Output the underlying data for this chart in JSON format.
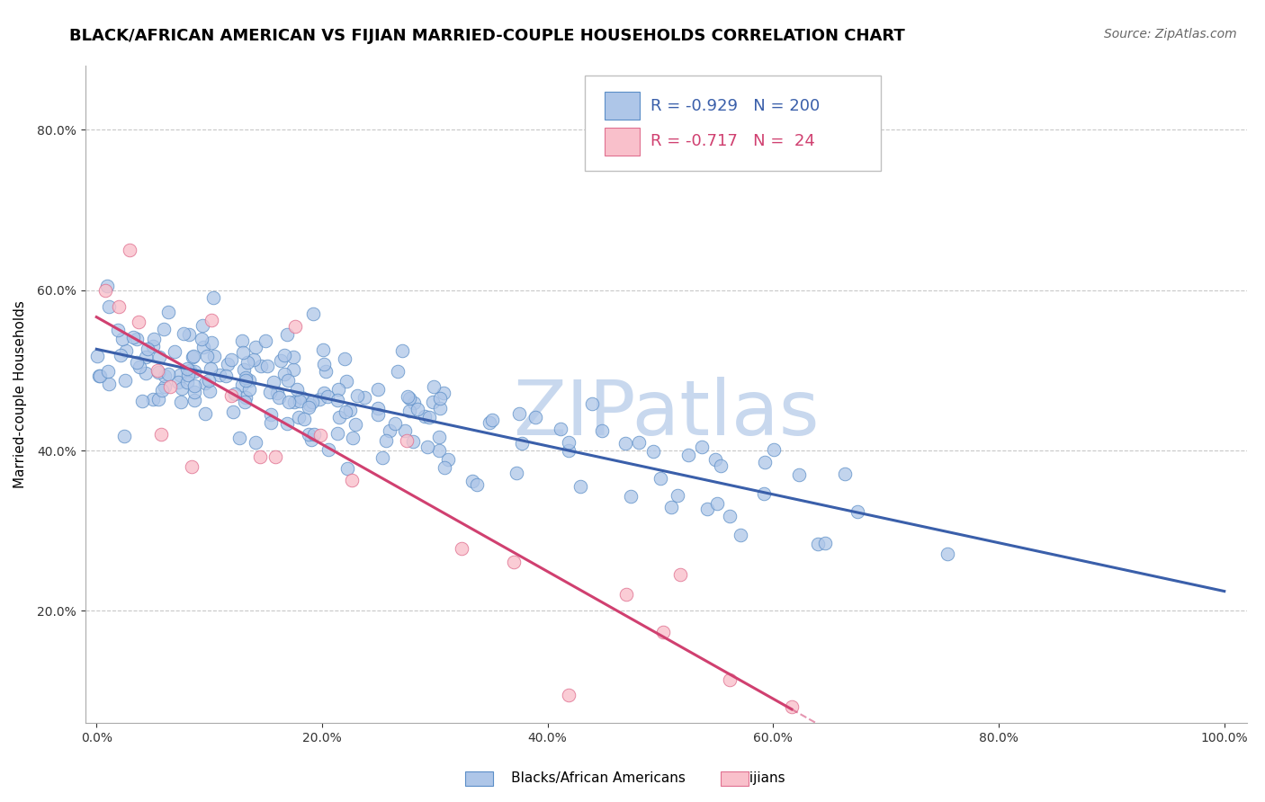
{
  "title": "BLACK/AFRICAN AMERICAN VS FIJIAN MARRIED-COUPLE HOUSEHOLDS CORRELATION CHART",
  "source_text": "Source: ZipAtlas.com",
  "ylabel": "Married-couple Households",
  "xlim": [
    -0.01,
    1.02
  ],
  "ylim": [
    0.06,
    0.88
  ],
  "xticks": [
    0.0,
    0.2,
    0.4,
    0.6,
    0.8,
    1.0
  ],
  "yticks": [
    0.2,
    0.4,
    0.6,
    0.8
  ],
  "legend_labels": [
    "Blacks/African Americans",
    "Fijians"
  ],
  "blue_R": -0.929,
  "blue_N": 200,
  "pink_R": -0.717,
  "pink_N": 24,
  "blue_fill_color": "#aec6e8",
  "pink_fill_color": "#f9c0cb",
  "blue_edge_color": "#5b8ec7",
  "pink_edge_color": "#e07090",
  "blue_line_color": "#3a5faa",
  "pink_line_color": "#d04070",
  "blue_trend_intercept": 0.525,
  "blue_trend_slope": -0.305,
  "pink_trend_intercept": 0.6,
  "pink_trend_slope": -0.85,
  "watermark_text": "ZIPatlas",
  "watermark_color": "#c8d8ee",
  "title_fontsize": 13,
  "axis_label_fontsize": 11,
  "tick_fontsize": 10,
  "legend_fontsize": 13,
  "source_fontsize": 10
}
